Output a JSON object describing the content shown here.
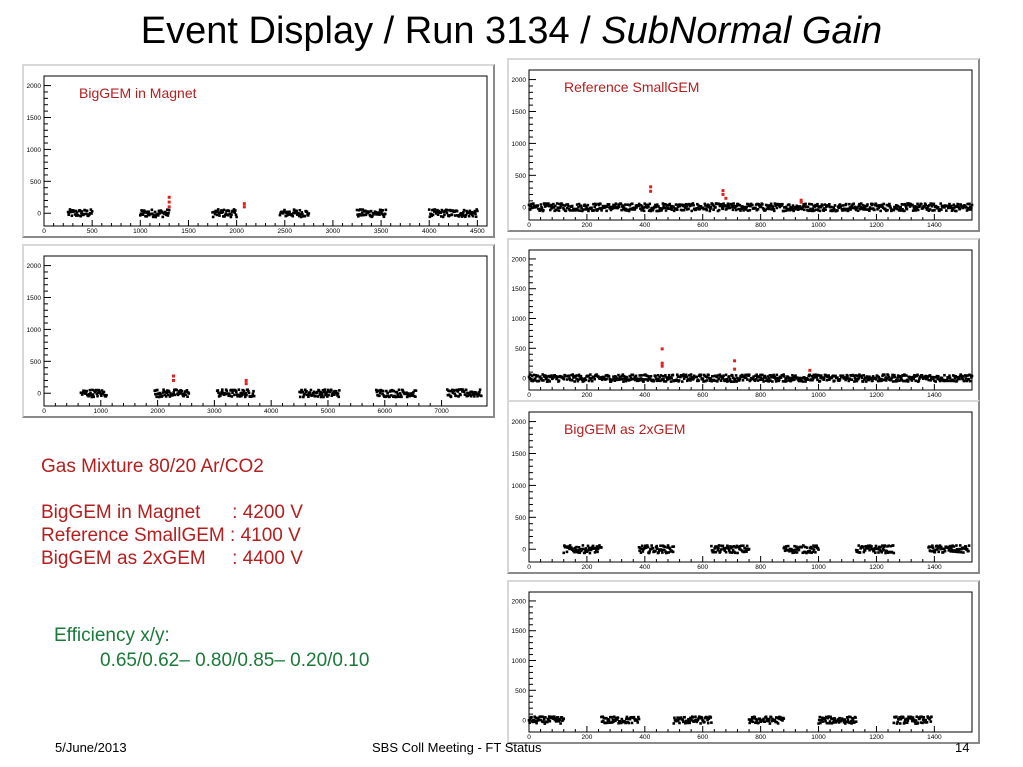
{
  "title": {
    "main": "Event Display / Run 3134 / ",
    "italic": "SubNormal Gain"
  },
  "info": {
    "gas": "Gas Mixture 80/20 Ar/CO2",
    "voltages": [
      "BigGEM in Magnet      : 4200 V",
      "Reference SmallGEM : 4100 V",
      "BigGEM as 2xGEM     : 4400 V"
    ]
  },
  "efficiency": {
    "label": "Efficiency x/y:",
    "values": "0.65/0.62– 0.80/0.85– 0.20/0.10"
  },
  "footer": {
    "date": "5/June/2013",
    "center": "SBS Coll Meeting - FT Status",
    "page": "14"
  },
  "colors": {
    "points": "#000000",
    "hits": "#e02020",
    "label": "#b41e1e",
    "efficiency": "#1a7a3a"
  },
  "chart_data": [
    {
      "type": "scatter",
      "title": "BigGEM in Magnet",
      "xlim": [
        0,
        4600
      ],
      "ylim": [
        -200,
        2150
      ],
      "xticks": [
        0,
        500,
        1000,
        1500,
        2000,
        2500,
        3000,
        3500,
        4000,
        4500
      ],
      "yticks": [
        0,
        500,
        1000,
        1500,
        2000
      ],
      "baseline_segments": [
        [
          250,
          500
        ],
        [
          1000,
          1300
        ],
        [
          1750,
          2000
        ],
        [
          2450,
          2750
        ],
        [
          3250,
          3550
        ],
        [
          4000,
          4500
        ]
      ],
      "hits": [
        [
          1300,
          100
        ],
        [
          1300,
          175
        ],
        [
          1300,
          250
        ],
        [
          2080,
          100
        ],
        [
          2080,
          150
        ]
      ]
    },
    {
      "type": "scatter",
      "title": "Reference SmallGEM",
      "xlim": [
        0,
        1530
      ],
      "ylim": [
        -200,
        2150
      ],
      "xticks": [
        0,
        200,
        400,
        600,
        800,
        1000,
        1200,
        1400
      ],
      "yticks": [
        0,
        500,
        1000,
        1500,
        2000
      ],
      "baseline_segments": [
        [
          0,
          1530
        ]
      ],
      "hits": [
        [
          420,
          250
        ],
        [
          420,
          320
        ],
        [
          670,
          200
        ],
        [
          670,
          260
        ],
        [
          680,
          140
        ],
        [
          940,
          80
        ],
        [
          940,
          110
        ]
      ]
    },
    {
      "type": "scatter",
      "title": "",
      "xlim": [
        0,
        7800
      ],
      "ylim": [
        -200,
        2150
      ],
      "xticks": [
        0,
        1000,
        2000,
        3000,
        4000,
        5000,
        6000,
        7000
      ],
      "yticks": [
        0,
        500,
        1000,
        1500,
        2000
      ],
      "baseline_segments": [
        [
          650,
          1100
        ],
        [
          1950,
          2550
        ],
        [
          3050,
          3700
        ],
        [
          4500,
          5200
        ],
        [
          5850,
          6550
        ],
        [
          7100,
          7700
        ]
      ],
      "hits": [
        [
          2280,
          200
        ],
        [
          2280,
          270
        ],
        [
          3560,
          150
        ],
        [
          3560,
          200
        ]
      ]
    },
    {
      "type": "scatter",
      "title": "",
      "xlim": [
        0,
        1530
      ],
      "ylim": [
        -200,
        2150
      ],
      "xticks": [
        0,
        200,
        400,
        600,
        800,
        1000,
        1200,
        1400
      ],
      "yticks": [
        0,
        500,
        1000,
        1500,
        2000
      ],
      "baseline_segments": [
        [
          0,
          1530
        ]
      ],
      "hits": [
        [
          460,
          200
        ],
        [
          460,
          250
        ],
        [
          460,
          490
        ],
        [
          710,
          150
        ],
        [
          710,
          290
        ],
        [
          970,
          130
        ]
      ]
    },
    {
      "type": "scatter",
      "title": "BigGEM as 2xGEM",
      "xlim": [
        0,
        1530
      ],
      "ylim": [
        -200,
        2150
      ],
      "xticks": [
        0,
        200,
        400,
        600,
        800,
        1000,
        1200,
        1400
      ],
      "yticks": [
        0,
        500,
        1000,
        1500,
        2000
      ],
      "baseline_segments": [
        [
          120,
          250
        ],
        [
          380,
          500
        ],
        [
          630,
          760
        ],
        [
          880,
          1000
        ],
        [
          1130,
          1260
        ],
        [
          1380,
          1520
        ]
      ],
      "hits": []
    },
    {
      "type": "scatter",
      "title": "",
      "xlim": [
        0,
        1530
      ],
      "ylim": [
        -200,
        2150
      ],
      "xticks": [
        0,
        200,
        400,
        600,
        800,
        1000,
        1200,
        1400
      ],
      "yticks": [
        0,
        500,
        1000,
        1500,
        2000
      ],
      "baseline_segments": [
        [
          0,
          120
        ],
        [
          250,
          380
        ],
        [
          500,
          630
        ],
        [
          760,
          880
        ],
        [
          1000,
          1130
        ],
        [
          1260,
          1390
        ]
      ],
      "hits": []
    }
  ]
}
